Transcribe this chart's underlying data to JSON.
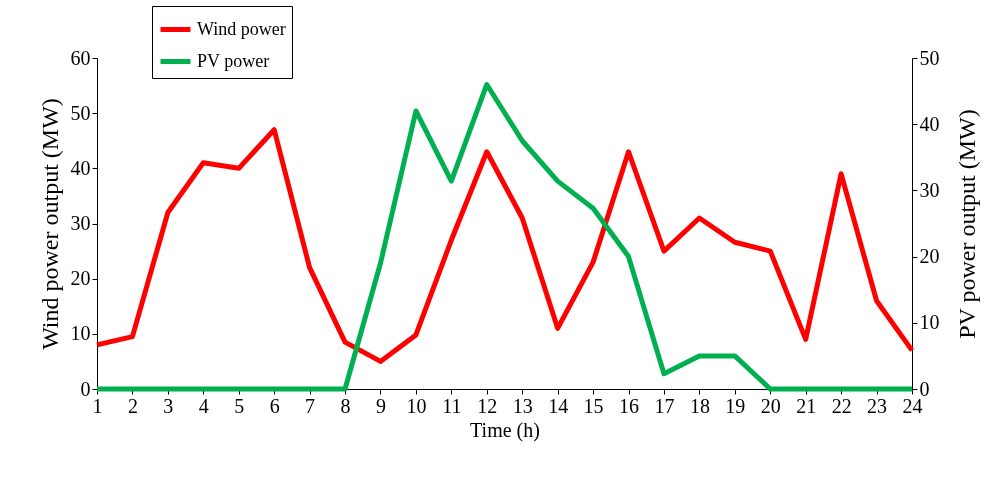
{
  "chart_data": {
    "type": "line",
    "xlabel": "Time (h)",
    "ylabel": "Wind power output (MW)",
    "y2label": "PV power output (MW)",
    "x": [
      1,
      2,
      3,
      4,
      5,
      6,
      7,
      8,
      9,
      10,
      11,
      12,
      13,
      14,
      15,
      16,
      17,
      18,
      19,
      20,
      21,
      22,
      23,
      24
    ],
    "series": [
      {
        "name": "Wind power",
        "color": "#ff0000",
        "values": [
          8,
          9.5,
          32,
          41,
          40,
          47,
          22,
          8.5,
          5,
          9.8,
          27,
          43,
          31,
          11,
          23,
          43,
          25,
          31,
          26.6,
          25,
          9,
          39,
          16,
          7
        ]
      },
      {
        "name": "PV power",
        "color": "#00b050",
        "axis": "y2",
        "values": [
          0,
          0,
          0,
          0,
          0,
          0,
          0,
          0,
          19,
          42,
          31.4,
          46,
          37.5,
          31.4,
          27.3,
          20,
          2.3,
          5,
          5,
          0,
          0,
          0,
          0,
          0
        ]
      }
    ],
    "xlim": [
      1,
      24
    ],
    "xticks": [
      1,
      2,
      3,
      4,
      5,
      6,
      7,
      8,
      9,
      10,
      11,
      12,
      13,
      14,
      15,
      16,
      17,
      18,
      19,
      20,
      21,
      22,
      23,
      24
    ],
    "ylim": [
      0,
      60
    ],
    "yticks": [
      0,
      10,
      20,
      30,
      40,
      50,
      60
    ],
    "y2lim": [
      0,
      50
    ],
    "y2ticks": [
      0,
      10,
      20,
      30,
      40,
      50
    ],
    "legend": "top left",
    "grid": false,
    "marker": "none",
    "line_style": "solid"
  }
}
